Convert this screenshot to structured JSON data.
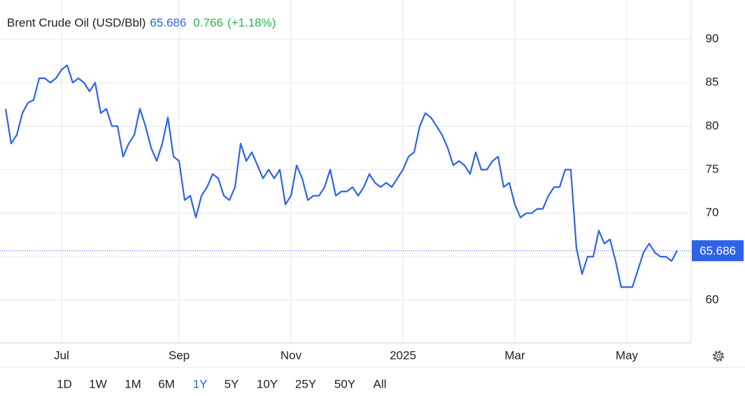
{
  "header": {
    "name": "Brent Crude Oil (USD/Bbl)",
    "change": 0.766,
    "change_percent_label": "(+1.18%)"
  },
  "ranges": [
    "1D",
    "1W",
    "1M",
    "6M",
    "1Y",
    "5Y",
    "10Y",
    "25Y",
    "50Y",
    "All"
  ],
  "selected_range": "1Y",
  "chart_data": {
    "type": "line",
    "color": "#2e63e8",
    "grid": true,
    "ylim": [
      55.1,
      94.5
    ],
    "yticks": [
      60,
      65,
      70,
      75,
      80,
      85,
      90
    ],
    "categories": [
      null,
      null,
      null,
      null,
      null,
      null,
      null,
      null,
      null,
      null,
      "Jul",
      null,
      null,
      null,
      null,
      null,
      null,
      null,
      null,
      null,
      null,
      null,
      null,
      null,
      null,
      null,
      null,
      null,
      null,
      null,
      null,
      "Sep",
      null,
      null,
      null,
      null,
      null,
      null,
      null,
      null,
      null,
      null,
      null,
      null,
      null,
      null,
      null,
      null,
      null,
      null,
      null,
      "Nov",
      null,
      null,
      null,
      null,
      null,
      null,
      null,
      null,
      null,
      null,
      null,
      null,
      null,
      null,
      null,
      null,
      null,
      null,
      null,
      "2025",
      null,
      null,
      null,
      null,
      null,
      null,
      null,
      null,
      null,
      null,
      null,
      null,
      null,
      null,
      null,
      null,
      null,
      null,
      null,
      "Mar",
      null,
      null,
      null,
      null,
      null,
      null,
      null,
      null,
      null,
      null,
      null,
      null,
      null,
      null,
      null,
      null,
      null,
      null,
      null,
      "May",
      null,
      null,
      null,
      null,
      null,
      null,
      null,
      null,
      null
    ],
    "values": [
      82,
      78,
      79,
      81.5,
      82.7,
      83,
      85.5,
      85.5,
      85,
      85.5,
      86.5,
      87,
      85,
      85.5,
      85,
      84,
      85,
      81.5,
      82,
      80,
      80,
      76.5,
      78,
      79,
      82,
      80,
      77.5,
      76,
      78,
      81,
      76.5,
      76,
      71.5,
      72,
      69.5,
      72,
      73,
      74.5,
      74,
      72,
      71.5,
      73,
      78,
      76,
      77,
      75.5,
      74,
      75,
      74,
      75,
      71,
      72,
      75.5,
      74,
      71.5,
      72,
      72,
      73,
      75,
      72,
      72.5,
      72.5,
      73,
      72,
      73,
      74.5,
      73.5,
      73,
      73.5,
      73,
      74,
      75,
      76.5,
      77,
      80,
      81.5,
      81,
      80,
      79,
      77.5,
      75.5,
      76,
      75.5,
      74.5,
      77,
      75,
      75,
      76,
      76.5,
      73,
      73.5,
      71,
      69.5,
      70,
      70,
      70.5,
      70.5,
      72,
      73,
      73,
      75,
      75,
      66,
      63,
      65,
      65,
      68,
      66.5,
      67,
      64.5,
      61.5,
      61.5,
      61.5,
      63.5,
      65.5,
      66.5,
      65.5,
      65,
      65,
      64.5,
      65.686
    ]
  }
}
